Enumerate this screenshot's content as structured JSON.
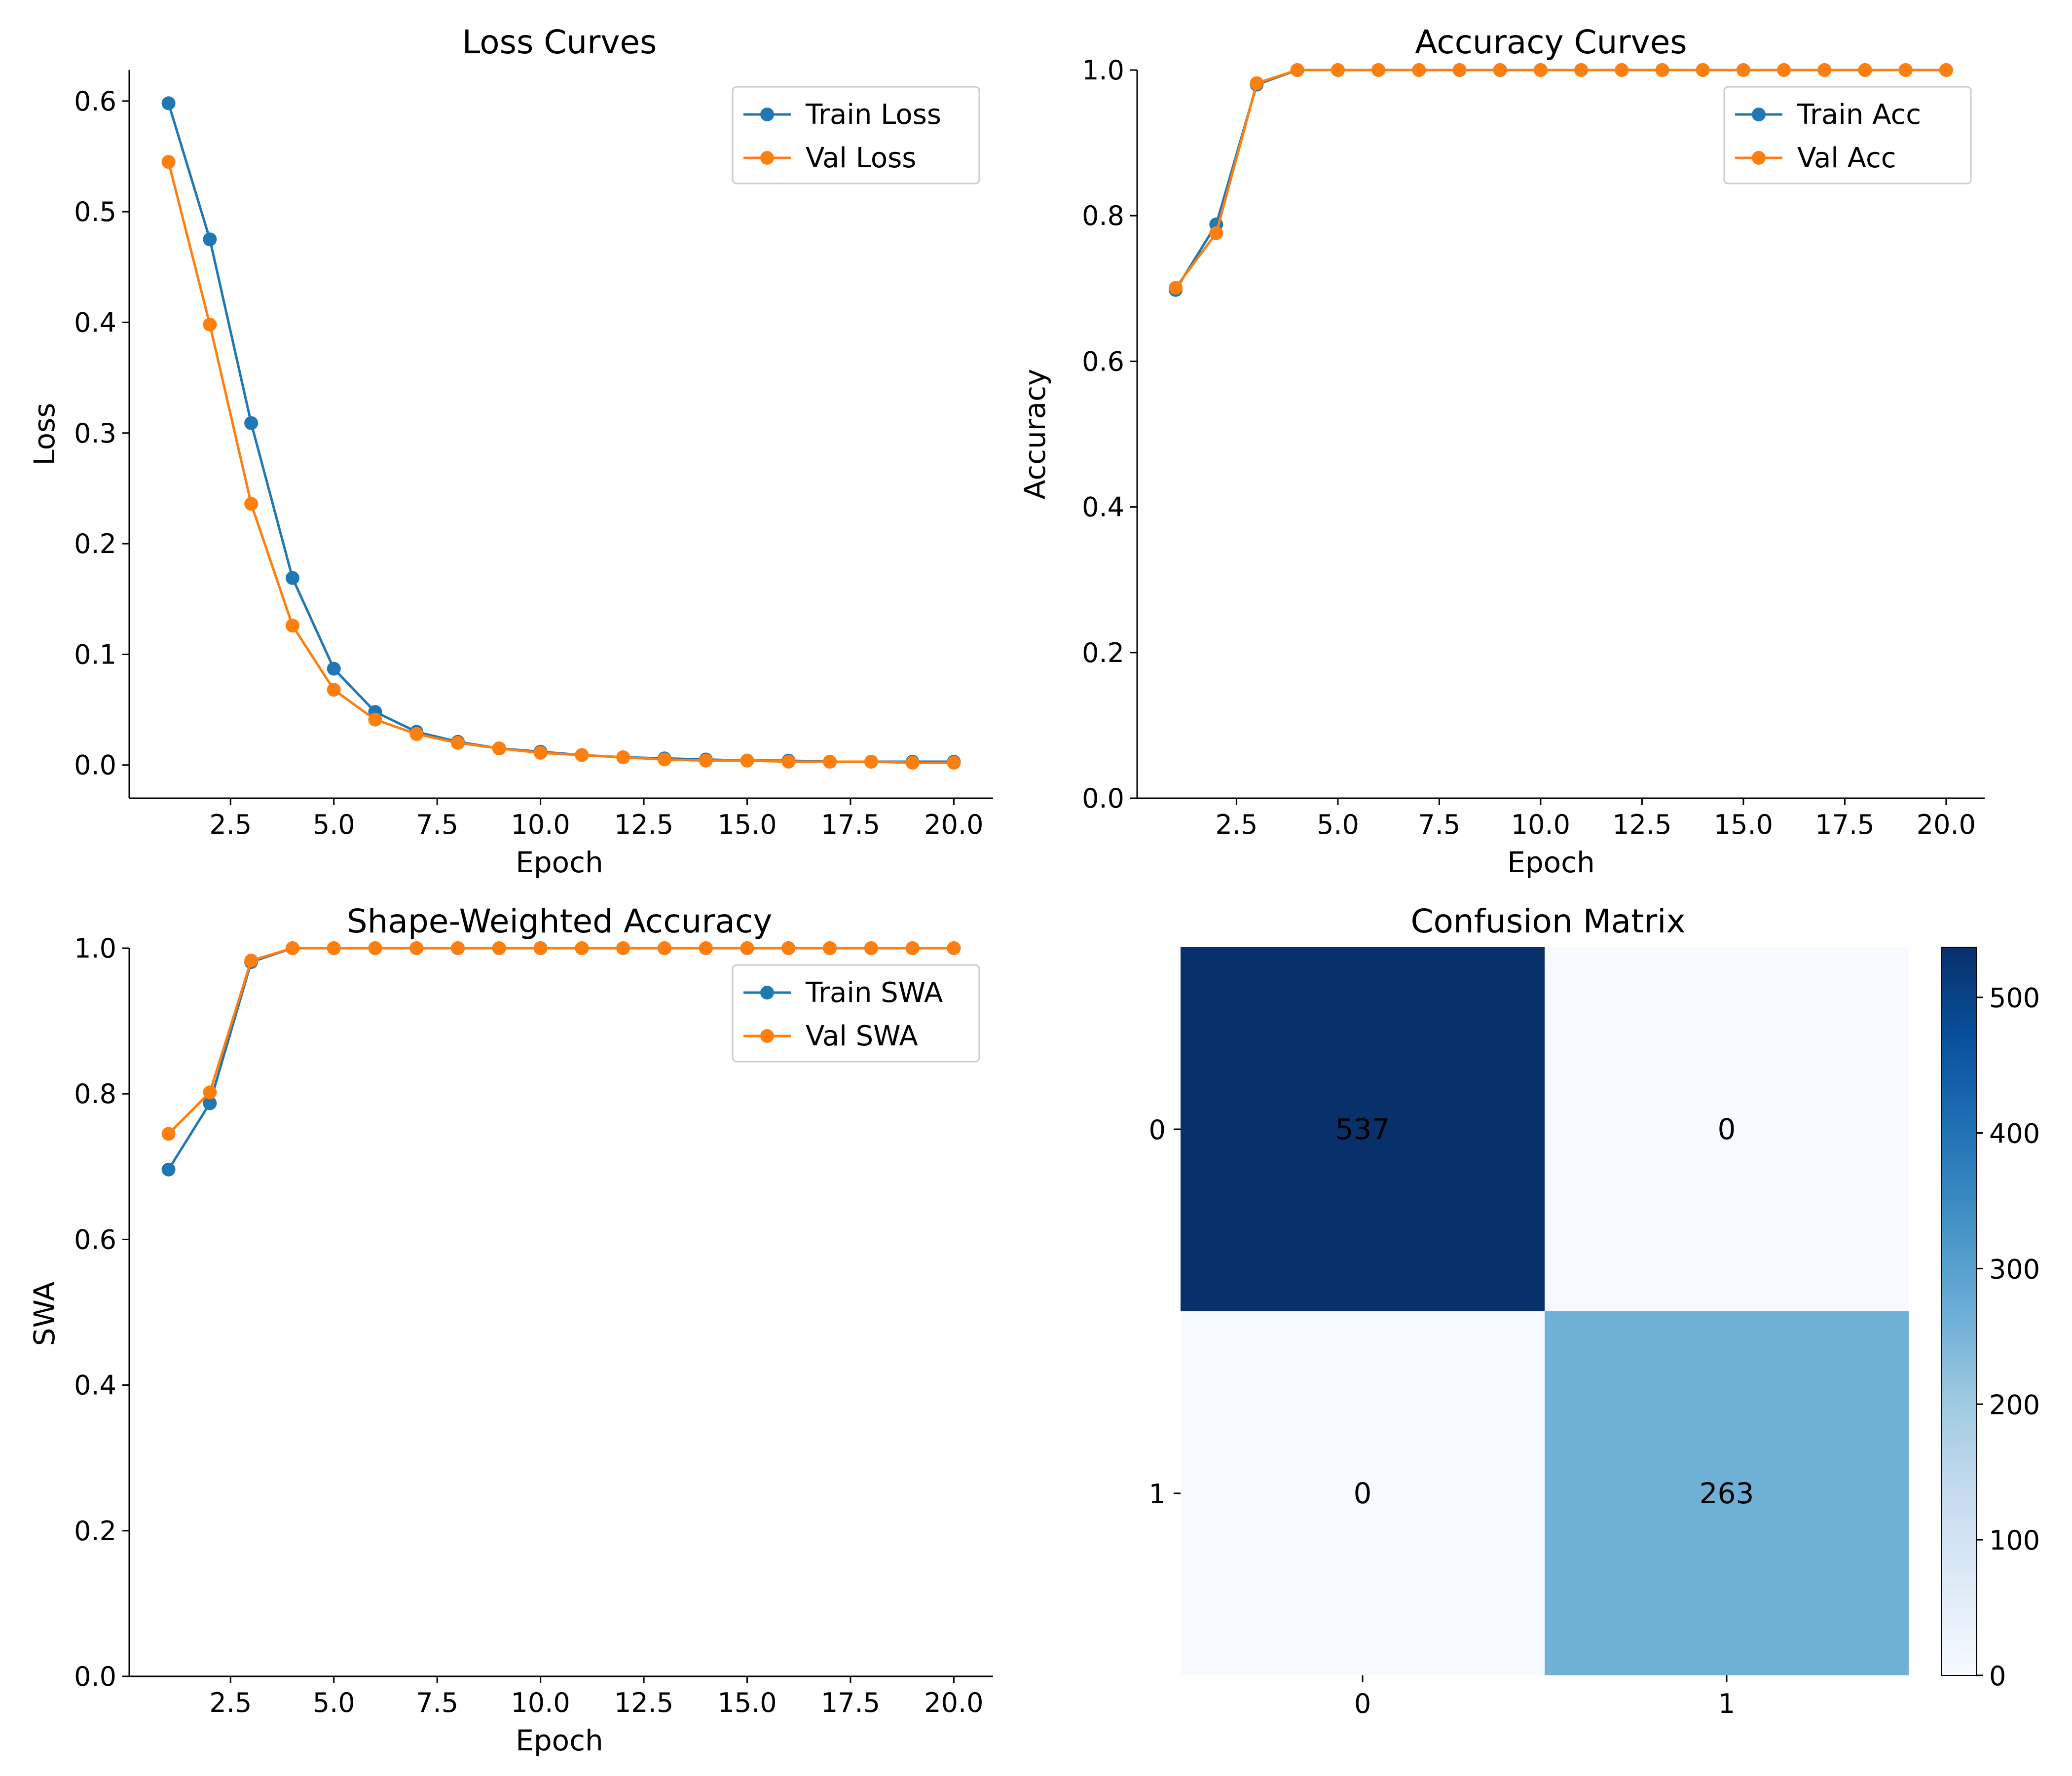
{
  "colors": {
    "train": "#1f77b4",
    "val": "#ff7f0e",
    "axis": "#000000"
  },
  "chart_data": [
    {
      "type": "line",
      "title": "Loss Curves",
      "xlabel": "Epoch",
      "ylabel": "Loss",
      "x": [
        1,
        2,
        3,
        4,
        5,
        6,
        7,
        8,
        9,
        10,
        11,
        12,
        13,
        14,
        15,
        16,
        17,
        18,
        19,
        20
      ],
      "xlim": [
        0.05,
        20.95
      ],
      "ylim": [
        -0.03,
        0.628
      ],
      "xticks": [
        2.5,
        5,
        7.5,
        10,
        12.5,
        15,
        17.5,
        20
      ],
      "xtick_labels": [
        "2.5",
        "5.0",
        "7.5",
        "10.0",
        "12.5",
        "15.0",
        "17.5",
        "20.0"
      ],
      "yticks": [
        0,
        0.1,
        0.2,
        0.3,
        0.4,
        0.5,
        0.6
      ],
      "ytick_labels": [
        "0.0",
        "0.1",
        "0.2",
        "0.3",
        "0.4",
        "0.5",
        "0.6"
      ],
      "legend": "top-right",
      "series": [
        {
          "name": "Train Loss",
          "color": "#1f77b4",
          "values": [
            0.598,
            0.475,
            0.309,
            0.169,
            0.087,
            0.048,
            0.03,
            0.021,
            0.015,
            0.012,
            0.009,
            0.007,
            0.006,
            0.005,
            0.004,
            0.004,
            0.003,
            0.003,
            0.003,
            0.003
          ]
        },
        {
          "name": "Val Loss",
          "color": "#ff7f0e",
          "values": [
            0.545,
            0.398,
            0.236,
            0.126,
            0.068,
            0.041,
            0.028,
            0.02,
            0.015,
            0.011,
            0.009,
            0.007,
            0.005,
            0.004,
            0.004,
            0.003,
            0.003,
            0.003,
            0.002,
            0.002
          ]
        }
      ]
    },
    {
      "type": "line",
      "title": "Accuracy Curves",
      "xlabel": "Epoch",
      "ylabel": "Accuracy",
      "x": [
        1,
        2,
        3,
        4,
        5,
        6,
        7,
        8,
        9,
        10,
        11,
        12,
        13,
        14,
        15,
        16,
        17,
        18,
        19,
        20
      ],
      "xlim": [
        0.05,
        20.95
      ],
      "ylim": [
        0,
        1.0
      ],
      "xticks": [
        2.5,
        5,
        7.5,
        10,
        12.5,
        15,
        17.5,
        20
      ],
      "xtick_labels": [
        "2.5",
        "5.0",
        "7.5",
        "10.0",
        "12.5",
        "15.0",
        "17.5",
        "20.0"
      ],
      "yticks": [
        0,
        0.2,
        0.4,
        0.6,
        0.8,
        1.0
      ],
      "ytick_labels": [
        "0.0",
        "0.2",
        "0.4",
        "0.6",
        "0.8",
        "1.0"
      ],
      "legend": "top-right",
      "series": [
        {
          "name": "Train Acc",
          "color": "#1f77b4",
          "values": [
            0.698,
            0.788,
            0.98,
            1.0,
            1.0,
            1.0,
            1.0,
            1.0,
            1.0,
            1.0,
            1.0,
            1.0,
            1.0,
            1.0,
            1.0,
            1.0,
            1.0,
            1.0,
            1.0,
            1.0
          ]
        },
        {
          "name": "Val Acc",
          "color": "#ff7f0e",
          "values": [
            0.701,
            0.776,
            0.982,
            1.0,
            1.0,
            1.0,
            1.0,
            1.0,
            1.0,
            1.0,
            1.0,
            1.0,
            1.0,
            1.0,
            1.0,
            1.0,
            1.0,
            1.0,
            1.0,
            1.0
          ]
        }
      ]
    },
    {
      "type": "line",
      "title": "Shape-Weighted Accuracy",
      "xlabel": "Epoch",
      "ylabel": "SWA",
      "x": [
        1,
        2,
        3,
        4,
        5,
        6,
        7,
        8,
        9,
        10,
        11,
        12,
        13,
        14,
        15,
        16,
        17,
        18,
        19,
        20
      ],
      "xlim": [
        0.05,
        20.95
      ],
      "ylim": [
        0,
        1.0
      ],
      "xticks": [
        2.5,
        5,
        7.5,
        10,
        12.5,
        15,
        17.5,
        20
      ],
      "xtick_labels": [
        "2.5",
        "5.0",
        "7.5",
        "10.0",
        "12.5",
        "15.0",
        "17.5",
        "20.0"
      ],
      "yticks": [
        0,
        0.2,
        0.4,
        0.6,
        0.8,
        1.0
      ],
      "ytick_labels": [
        "0.0",
        "0.2",
        "0.4",
        "0.6",
        "0.8",
        "1.0"
      ],
      "legend": "top-right",
      "series": [
        {
          "name": "Train SWA",
          "color": "#1f77b4",
          "values": [
            0.696,
            0.787,
            0.981,
            1.0,
            1.0,
            1.0,
            1.0,
            1.0,
            1.0,
            1.0,
            1.0,
            1.0,
            1.0,
            1.0,
            1.0,
            1.0,
            1.0,
            1.0,
            1.0,
            1.0
          ]
        },
        {
          "name": "Val SWA",
          "color": "#ff7f0e",
          "values": [
            0.745,
            0.802,
            0.983,
            1.0,
            1.0,
            1.0,
            1.0,
            1.0,
            1.0,
            1.0,
            1.0,
            1.0,
            1.0,
            1.0,
            1.0,
            1.0,
            1.0,
            1.0,
            1.0,
            1.0
          ]
        }
      ]
    },
    {
      "type": "heatmap",
      "title": "Confusion Matrix",
      "row_labels": [
        "0",
        "1"
      ],
      "col_labels": [
        "0",
        "1"
      ],
      "values": [
        [
          537,
          0
        ],
        [
          0,
          263
        ]
      ],
      "cell_labels": [
        [
          "537",
          "0"
        ],
        [
          "0",
          "263"
        ]
      ],
      "colormap": "Blues",
      "colorbar_range": [
        0,
        537
      ],
      "colorbar_ticks": [
        0,
        100,
        200,
        300,
        400,
        500
      ],
      "colorbar_tick_labels": [
        "0",
        "100",
        "200",
        "300",
        "400",
        "500"
      ]
    }
  ]
}
